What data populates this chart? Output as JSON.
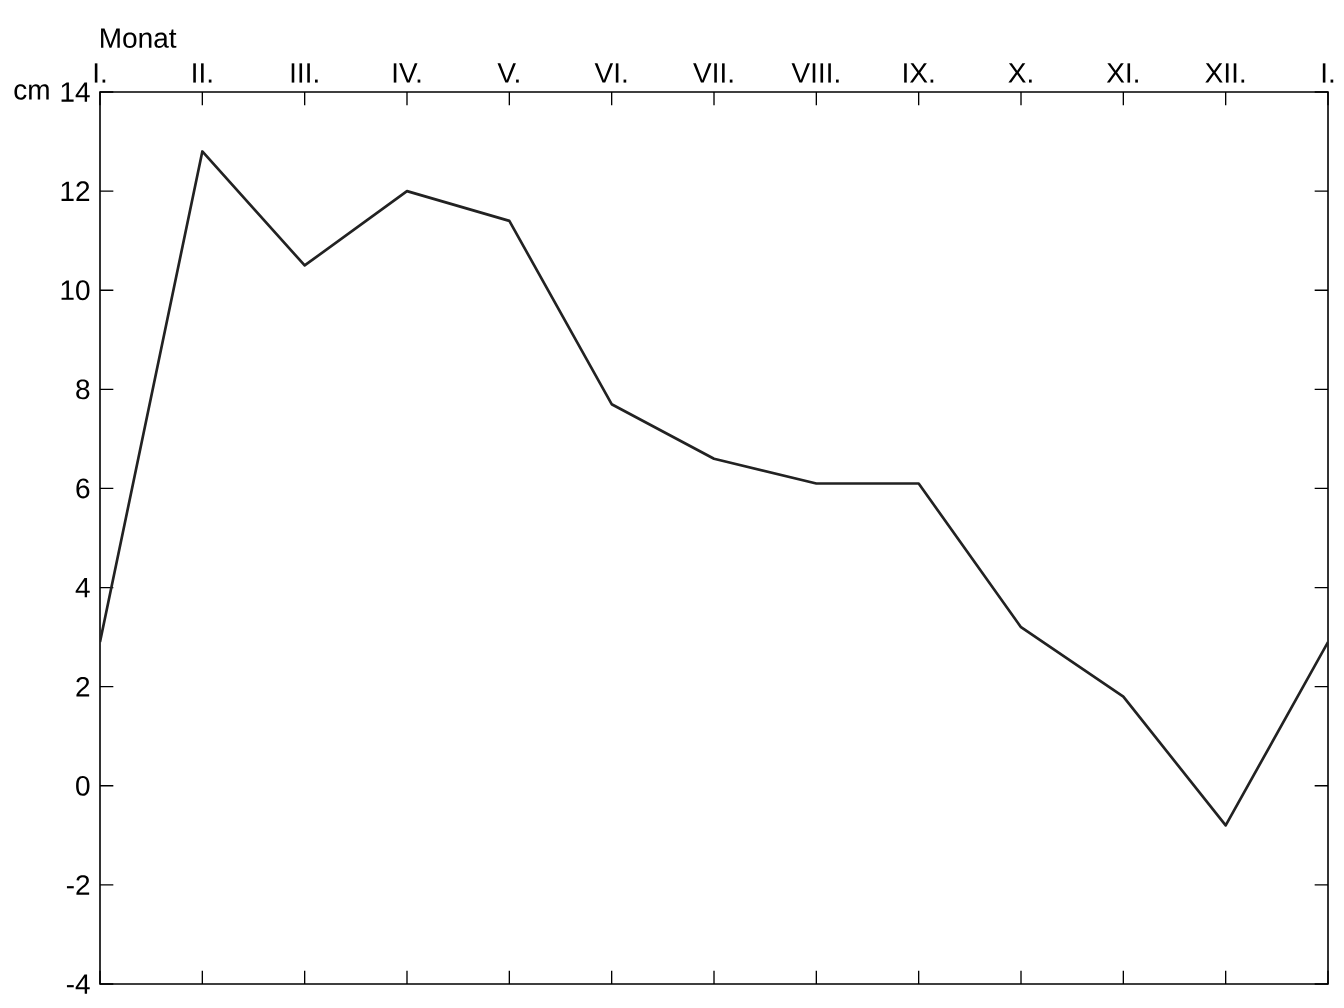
{
  "chart_data": {
    "type": "line",
    "xlabel": "Monat",
    "ylabel": "cm",
    "categories": [
      "I.",
      "II.",
      "III.",
      "IV.",
      "V.",
      "VI.",
      "VII.",
      "VIII.",
      "IX.",
      "X.",
      "XI.",
      "XII.",
      "I."
    ],
    "values": [
      2.9,
      12.8,
      10.5,
      12.0,
      11.4,
      7.7,
      6.6,
      6.1,
      6.1,
      3.2,
      1.8,
      -0.8,
      2.9
    ],
    "color": "#222222",
    "marker": "none",
    "line_style": "solid",
    "ylim": [
      -4,
      14
    ],
    "yticks": [
      -4,
      -2,
      0,
      2,
      4,
      6,
      8,
      10,
      12,
      14
    ]
  }
}
